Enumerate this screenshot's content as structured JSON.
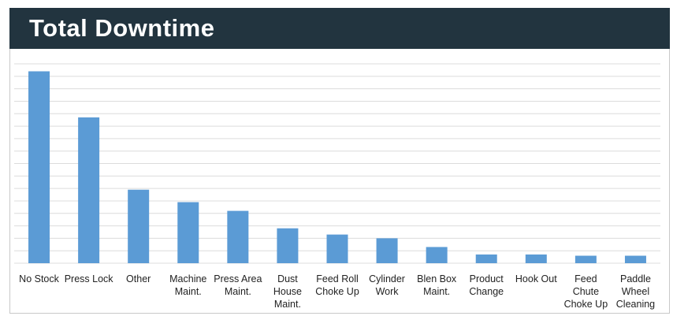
{
  "chart_data": {
    "type": "bar",
    "title": "Total Downtime",
    "categories": [
      "No Stock",
      "Press Lock",
      "Other",
      "Machine Maint.",
      "Press Area Maint.",
      "Dust House Maint.",
      "Feed Roll Choke Up",
      "Cylinder Work",
      "Blen Box Maint.",
      "Product Change",
      "Hook Out",
      "Feed Chute Choke Up",
      "Paddle Wheel Cleaning"
    ],
    "values": [
      15.4,
      11.7,
      5.9,
      4.9,
      4.2,
      2.8,
      2.3,
      2.0,
      1.3,
      0.7,
      0.7,
      0.6,
      0.6
    ],
    "color": "#5b9bd5",
    "ylim": [
      0,
      16
    ],
    "yticks": [
      0,
      1,
      2,
      3,
      4,
      5,
      6,
      7,
      8,
      9,
      10,
      11,
      12,
      13,
      14,
      15,
      16
    ],
    "grid": true
  }
}
